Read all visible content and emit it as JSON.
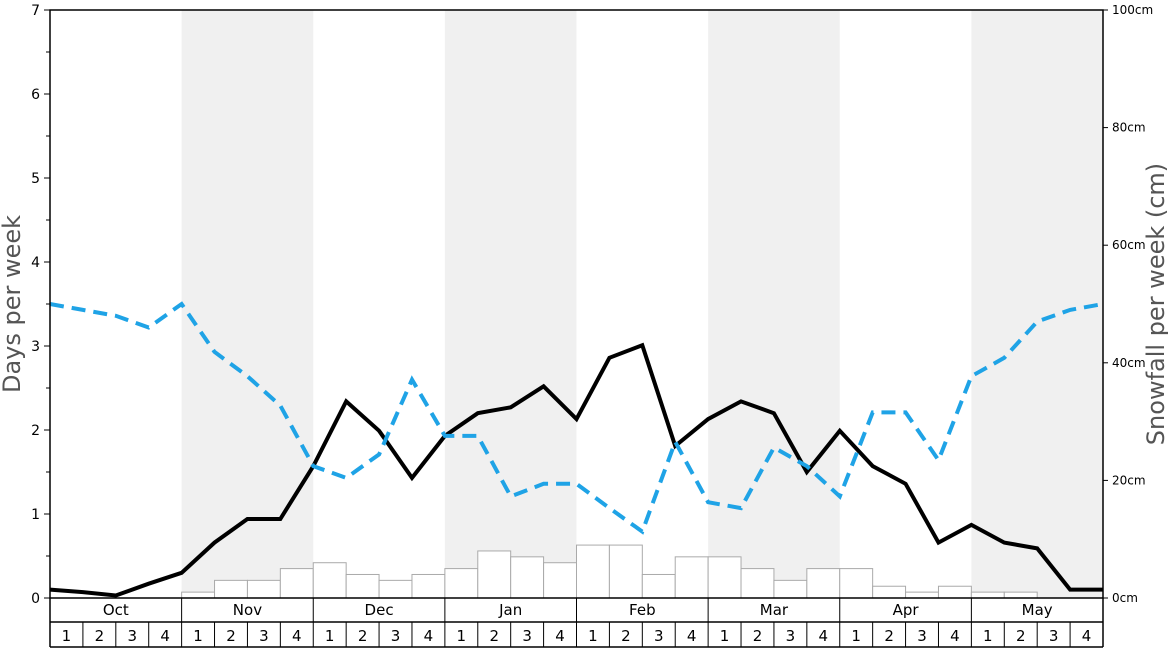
{
  "chart_data": {
    "type": "line",
    "title": "",
    "ylabel_left": "Days per week",
    "ylabel_right": "Snowfall per week (cm)",
    "ylim_left": [
      0,
      7
    ],
    "ylim_right": [
      0,
      100
    ],
    "left_ticks": [
      "0",
      "1",
      "2",
      "3",
      "4",
      "5",
      "6",
      "7"
    ],
    "right_ticks": [
      "0cm",
      "20cm",
      "40cm",
      "60cm",
      "80cm",
      "100cm"
    ],
    "months": [
      "Oct",
      "Nov",
      "Dec",
      "Jan",
      "Feb",
      "Mar",
      "Apr",
      "May"
    ],
    "week_labels": [
      "1",
      "2",
      "3",
      "4"
    ],
    "alternate_month_shading": "#f0f0f0",
    "snowfall_bars_cm": [
      0,
      0,
      0,
      0,
      1,
      3,
      3,
      5,
      6,
      4,
      3,
      4,
      5,
      8,
      7,
      6,
      9,
      9,
      4,
      7,
      7,
      5,
      3,
      5,
      5,
      2,
      1,
      2,
      1,
      1,
      0,
      0
    ],
    "series": [
      {
        "style": "solid",
        "color": "#000000",
        "values": [
          0.1,
          0.07,
          0.03,
          0.17,
          0.3,
          0.66,
          0.94,
          0.94,
          1.57,
          2.34,
          1.99,
          1.43,
          1.93,
          2.2,
          2.27,
          2.52,
          2.13,
          2.86,
          3.01,
          1.81,
          2.13,
          2.34,
          2.2,
          1.5,
          1.99,
          1.57,
          1.36,
          0.66,
          0.87,
          0.66,
          0.59,
          0.1,
          0.1
        ]
      },
      {
        "style": "dashed",
        "color": "#1fa3e6",
        "values": [
          3.5,
          3.43,
          3.36,
          3.22,
          3.5,
          2.93,
          2.64,
          2.29,
          1.57,
          1.43,
          1.71,
          2.6,
          1.93,
          1.93,
          1.21,
          1.36,
          1.36,
          1.07,
          0.79,
          1.86,
          1.14,
          1.07,
          1.79,
          1.57,
          1.21,
          2.21,
          2.21,
          1.64,
          2.64,
          2.86,
          3.29,
          3.43,
          3.5
        ]
      }
    ]
  }
}
